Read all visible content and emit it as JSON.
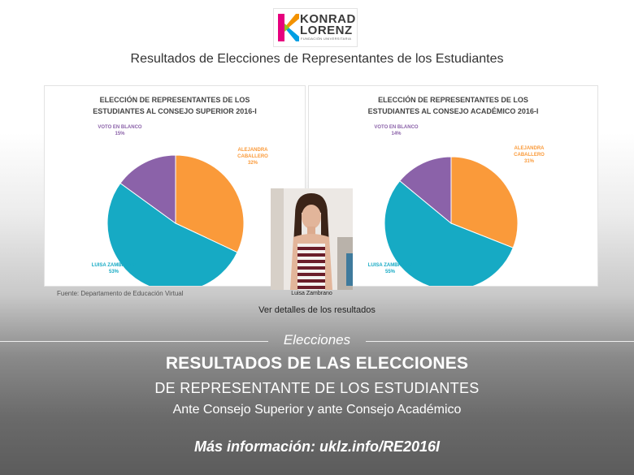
{
  "logo": {
    "line1": "KONRAD",
    "line2": "LORENZ",
    "line3": "FUNDACIÓN UNIVERSITARIA"
  },
  "page_title": "Resultados de Elecciones de Representantes de los Estudiantes",
  "colors": {
    "orange": "#fa9a3a",
    "teal": "#16aac4",
    "purple": "#8b62a9"
  },
  "chart_data": [
    {
      "type": "pie",
      "title_line1": "ELECCIÓN DE REPRESENTANTES DE LOS",
      "title_line2": "ESTUDIANTES AL CONSEJO SUPERIOR 2016-I",
      "slices": [
        {
          "label_line1": "ALEJANDRA",
          "label_line2": "CABALLERO",
          "pct_label": "32%",
          "value": 32,
          "color": "#fa9a3a"
        },
        {
          "label_line1": "LUISA ZAMBRANO",
          "label_line2": "",
          "pct_label": "53%",
          "value": 53,
          "color": "#16aac4"
        },
        {
          "label_line1": "VOTO EN BLANCO",
          "label_line2": "",
          "pct_label": "15%",
          "value": 15,
          "color": "#8b62a9"
        }
      ]
    },
    {
      "type": "pie",
      "title_line1": "ELECCIÓN DE REPRESENTANTES DE LOS",
      "title_line2": "ESTUDIANTES AL CONSEJO ACADÉMICO 2016-I",
      "slices": [
        {
          "label_line1": "ALEJANDRA",
          "label_line2": "CABALLERO",
          "pct_label": "31%",
          "value": 31,
          "color": "#fa9a3a"
        },
        {
          "label_line1": "LUISA ZAMBRANO",
          "label_line2": "",
          "pct_label": "55%",
          "value": 55,
          "color": "#16aac4"
        },
        {
          "label_line1": "VOTO EN BLANCO",
          "label_line2": "",
          "pct_label": "14%",
          "value": 14,
          "color": "#8b62a9"
        }
      ]
    }
  ],
  "photo_caption": "Luisa Zambrano",
  "source": "Fuente: Departamento de Educación Virtual",
  "details_link": "Ver detalles de los resultados",
  "section_label": "Elecciones",
  "heading1": "RESULTADOS DE LAS ELECCIONES",
  "heading2": "DE REPRESENTANTE DE LOS ESTUDIANTES",
  "heading3": "Ante Consejo Superior y ante Consejo Académico",
  "more_info": "Más información: uklz.info/RE2016I"
}
